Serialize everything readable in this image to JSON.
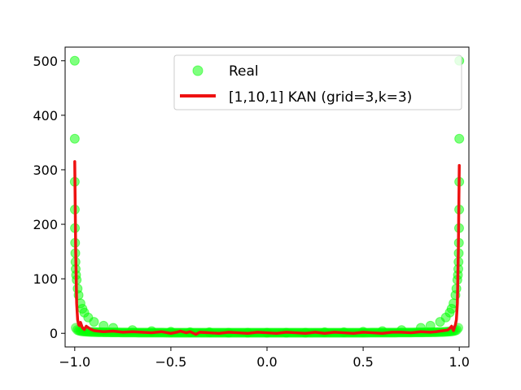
{
  "chart_data": {
    "type": "scatter",
    "title": "",
    "xlabel": "",
    "ylabel": "",
    "xlim": [
      -1.05,
      1.05
    ],
    "ylim": [
      -25,
      525
    ],
    "x_ticks": [
      -1.0,
      -0.5,
      0.0,
      0.5,
      1.0
    ],
    "x_tick_labels": [
      "−1.0",
      "−0.5",
      "0.0",
      "0.5",
      "1.0"
    ],
    "y_ticks": [
      0,
      100,
      200,
      300,
      400,
      500
    ],
    "y_tick_labels": [
      "0",
      "100",
      "200",
      "300",
      "400",
      "500"
    ],
    "grid": false,
    "legend_position": "upper-right",
    "series": [
      {
        "name": "Real",
        "kind": "scatter",
        "color": "#00ff00",
        "opacity": 0.5,
        "x": [
          -1.0,
          -0.9999,
          -0.9998,
          -0.9995,
          -0.999,
          -0.998,
          -0.997,
          -0.996,
          -0.995,
          -0.993,
          -0.99,
          -0.985,
          -0.98,
          -0.97,
          -0.96,
          -0.95,
          -0.93,
          -0.9,
          -0.85,
          -0.8,
          -0.7,
          -0.6,
          -0.5,
          -0.4,
          -0.3,
          -0.2,
          -0.1,
          0.0,
          0.1,
          0.2,
          0.3,
          0.4,
          0.5,
          0.6,
          0.7,
          0.8,
          0.85,
          0.9,
          0.93,
          0.95,
          0.96,
          0.97,
          0.98,
          0.985,
          0.99,
          0.993,
          0.995,
          0.996,
          0.997,
          0.998,
          0.999,
          0.9995,
          0.9998,
          0.9999,
          1.0
        ],
        "y": [
          500,
          357,
          278,
          227,
          193,
          166,
          147,
          131,
          118,
          107,
          98,
          82,
          70,
          55,
          45,
          38,
          29,
          21,
          14,
          10,
          6,
          4,
          3,
          2,
          2,
          1,
          1,
          1,
          1,
          1,
          2,
          2,
          3,
          4,
          6,
          10,
          14,
          21,
          29,
          38,
          45,
          55,
          70,
          82,
          98,
          107,
          118,
          131,
          147,
          166,
          193,
          227,
          278,
          357,
          500
        ]
      },
      {
        "name": "[1,10,1] KAN (grid=3,k=3)",
        "kind": "line",
        "color": "#ee1111",
        "x": [
          -1.0,
          -0.995,
          -0.99,
          -0.985,
          -0.98,
          -0.975,
          -0.97,
          -0.96,
          -0.95,
          -0.94,
          -0.92,
          -0.9,
          -0.88,
          -0.85,
          -0.8,
          -0.75,
          -0.7,
          -0.65,
          -0.6,
          -0.55,
          -0.5,
          -0.47,
          -0.45,
          -0.42,
          -0.4,
          -0.37,
          -0.35,
          -0.3,
          -0.25,
          -0.2,
          -0.15,
          -0.1,
          -0.05,
          0.0,
          0.05,
          0.1,
          0.15,
          0.2,
          0.25,
          0.3,
          0.35,
          0.4,
          0.45,
          0.5,
          0.55,
          0.6,
          0.65,
          0.7,
          0.75,
          0.8,
          0.85,
          0.88,
          0.9,
          0.92,
          0.94,
          0.95,
          0.96,
          0.97,
          0.975,
          0.98,
          0.985,
          0.99,
          0.995,
          1.0
        ],
        "y": [
          315,
          150,
          55,
          25,
          16,
          14,
          20,
          10,
          7,
          13,
          8,
          5,
          4,
          3,
          4,
          2,
          3,
          2,
          1,
          3,
          0,
          2,
          4,
          1,
          3,
          -2,
          2,
          1,
          0,
          2,
          1,
          0,
          2,
          1,
          0,
          2,
          1,
          0,
          2,
          0,
          2,
          1,
          0,
          2,
          1,
          0,
          2,
          2,
          1,
          3,
          2,
          3,
          4,
          5,
          6,
          9,
          13,
          5,
          11,
          16,
          25,
          55,
          150,
          308
        ]
      }
    ]
  }
}
